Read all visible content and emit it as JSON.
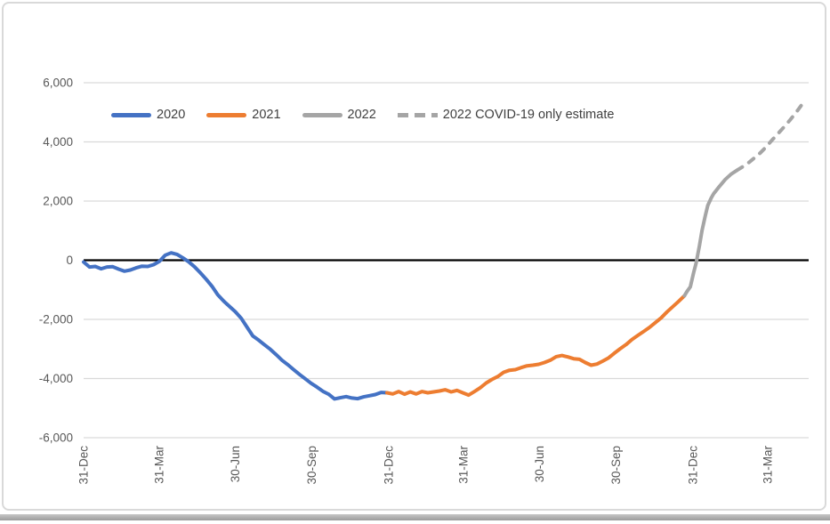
{
  "chart_data": {
    "type": "line",
    "title": "",
    "x_axis": {
      "xlim": [
        0,
        870
      ],
      "ticks": [
        {
          "day": 0,
          "label": "31-Dec"
        },
        {
          "day": 91,
          "label": "31-Mar"
        },
        {
          "day": 182,
          "label": "30-Jun"
        },
        {
          "day": 274,
          "label": "30-Sep"
        },
        {
          "day": 366,
          "label": "31-Dec"
        },
        {
          "day": 456,
          "label": "31-Mar"
        },
        {
          "day": 547,
          "label": "30-Jun"
        },
        {
          "day": 639,
          "label": "30-Sep"
        },
        {
          "day": 731,
          "label": "31-Dec"
        },
        {
          "day": 821,
          "label": "31-Mar"
        }
      ]
    },
    "y_axis": {
      "ylim": [
        -6000,
        6000
      ],
      "ticks": [
        {
          "value": 6000,
          "label": "6,000"
        },
        {
          "value": 4000,
          "label": "4,000"
        },
        {
          "value": 2000,
          "label": "2,000"
        },
        {
          "value": 0,
          "label": "0"
        },
        {
          "value": -2000,
          "label": "-2,000"
        },
        {
          "value": -4000,
          "label": "-4,000"
        },
        {
          "value": -6000,
          "label": "-6,000"
        }
      ]
    },
    "grid": {
      "color": "#d9d9d9",
      "zero_line_color": "#000000"
    },
    "legend": [
      {
        "label": "2020",
        "color": "#4472C4",
        "dashed": false
      },
      {
        "label": "2021",
        "color": "#ED7D31",
        "dashed": false
      },
      {
        "label": "2022",
        "color": "#A5A5A5",
        "dashed": false
      },
      {
        "label": "2022 COVID-19 only estimate",
        "color": "#A5A5A5",
        "dashed": true
      }
    ],
    "series": [
      {
        "name": "2020",
        "color": "#4472C4",
        "dashed": false,
        "points": [
          [
            0,
            -60
          ],
          [
            7,
            -230
          ],
          [
            14,
            -210
          ],
          [
            21,
            -290
          ],
          [
            28,
            -230
          ],
          [
            35,
            -220
          ],
          [
            42,
            -300
          ],
          [
            49,
            -370
          ],
          [
            56,
            -330
          ],
          [
            63,
            -260
          ],
          [
            70,
            -200
          ],
          [
            77,
            -210
          ],
          [
            84,
            -150
          ],
          [
            91,
            -40
          ],
          [
            98,
            170
          ],
          [
            105,
            250
          ],
          [
            112,
            200
          ],
          [
            119,
            80
          ],
          [
            126,
            -50
          ],
          [
            133,
            -220
          ],
          [
            140,
            -420
          ],
          [
            147,
            -640
          ],
          [
            154,
            -880
          ],
          [
            161,
            -1170
          ],
          [
            168,
            -1380
          ],
          [
            175,
            -1560
          ],
          [
            182,
            -1740
          ],
          [
            189,
            -1960
          ],
          [
            196,
            -2260
          ],
          [
            203,
            -2560
          ],
          [
            210,
            -2700
          ],
          [
            217,
            -2860
          ],
          [
            224,
            -3010
          ],
          [
            231,
            -3190
          ],
          [
            238,
            -3380
          ],
          [
            245,
            -3530
          ],
          [
            252,
            -3700
          ],
          [
            259,
            -3860
          ],
          [
            266,
            -4010
          ],
          [
            273,
            -4160
          ],
          [
            280,
            -4290
          ],
          [
            287,
            -4430
          ],
          [
            294,
            -4530
          ],
          [
            301,
            -4690
          ],
          [
            308,
            -4650
          ],
          [
            315,
            -4610
          ],
          [
            322,
            -4660
          ],
          [
            329,
            -4680
          ],
          [
            336,
            -4620
          ],
          [
            343,
            -4580
          ],
          [
            350,
            -4540
          ],
          [
            357,
            -4470
          ],
          [
            364,
            -4480
          ]
        ]
      },
      {
        "name": "2021",
        "color": "#ED7D31",
        "dashed": false,
        "points": [
          [
            364,
            -4480
          ],
          [
            371,
            -4520
          ],
          [
            378,
            -4440
          ],
          [
            385,
            -4530
          ],
          [
            392,
            -4450
          ],
          [
            399,
            -4520
          ],
          [
            406,
            -4440
          ],
          [
            413,
            -4480
          ],
          [
            420,
            -4450
          ],
          [
            427,
            -4420
          ],
          [
            434,
            -4380
          ],
          [
            441,
            -4450
          ],
          [
            448,
            -4400
          ],
          [
            455,
            -4480
          ],
          [
            462,
            -4560
          ],
          [
            469,
            -4440
          ],
          [
            476,
            -4310
          ],
          [
            483,
            -4150
          ],
          [
            490,
            -4030
          ],
          [
            497,
            -3930
          ],
          [
            504,
            -3790
          ],
          [
            511,
            -3720
          ],
          [
            518,
            -3700
          ],
          [
            525,
            -3630
          ],
          [
            532,
            -3570
          ],
          [
            539,
            -3550
          ],
          [
            546,
            -3520
          ],
          [
            553,
            -3460
          ],
          [
            560,
            -3380
          ],
          [
            567,
            -3260
          ],
          [
            574,
            -3220
          ],
          [
            581,
            -3270
          ],
          [
            588,
            -3330
          ],
          [
            595,
            -3350
          ],
          [
            602,
            -3460
          ],
          [
            609,
            -3550
          ],
          [
            616,
            -3510
          ],
          [
            623,
            -3410
          ],
          [
            630,
            -3300
          ],
          [
            637,
            -3140
          ],
          [
            644,
            -2990
          ],
          [
            651,
            -2850
          ],
          [
            658,
            -2680
          ],
          [
            665,
            -2540
          ],
          [
            672,
            -2410
          ],
          [
            679,
            -2270
          ],
          [
            686,
            -2110
          ],
          [
            693,
            -1950
          ],
          [
            700,
            -1750
          ],
          [
            707,
            -1570
          ],
          [
            714,
            -1390
          ],
          [
            721,
            -1200
          ]
        ]
      },
      {
        "name": "2022",
        "color": "#A5A5A5",
        "dashed": false,
        "points": [
          [
            721,
            -1200
          ],
          [
            724,
            -1060
          ],
          [
            728,
            -900
          ],
          [
            732,
            -420
          ],
          [
            735,
            -100
          ],
          [
            739,
            500
          ],
          [
            742,
            1000
          ],
          [
            746,
            1500
          ],
          [
            749,
            1850
          ],
          [
            753,
            2100
          ],
          [
            756,
            2250
          ],
          [
            763,
            2500
          ],
          [
            770,
            2730
          ],
          [
            777,
            2910
          ],
          [
            784,
            3040
          ]
        ]
      },
      {
        "name": "2022 COVID-19 only estimate",
        "color": "#A5A5A5",
        "dashed": true,
        "points": [
          [
            784,
            3040
          ],
          [
            791,
            3160
          ],
          [
            798,
            3300
          ],
          [
            805,
            3460
          ],
          [
            812,
            3630
          ],
          [
            819,
            3830
          ],
          [
            826,
            4060
          ],
          [
            833,
            4270
          ],
          [
            840,
            4490
          ],
          [
            847,
            4720
          ],
          [
            854,
            4960
          ],
          [
            861,
            5230
          ],
          [
            867,
            5330
          ]
        ]
      }
    ]
  }
}
